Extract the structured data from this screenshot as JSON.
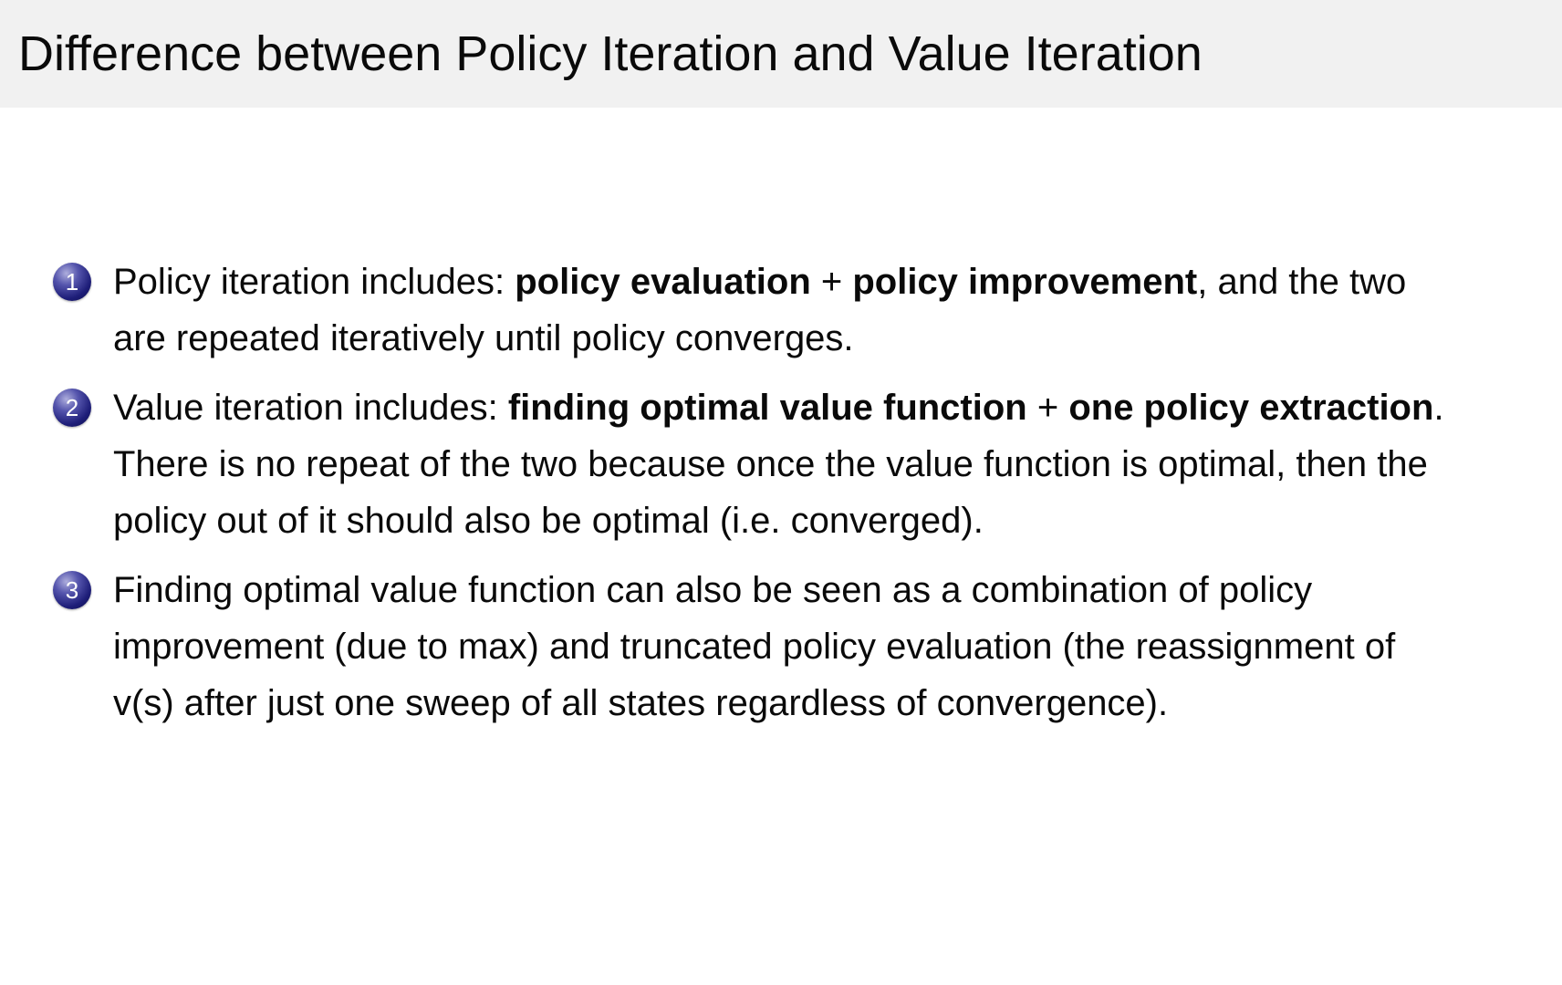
{
  "slide": {
    "title": "Difference between Policy Iteration and Value Iteration",
    "colors": {
      "header_background": "#f1f1f1",
      "body_background": "#ffffff",
      "text": "#0a0a0a",
      "ball_dark": "#1d1d78",
      "ball_highlight": "#aeaedd",
      "ball_number": "#ffffff"
    },
    "items": [
      {
        "number": "1",
        "segments": [
          {
            "text": "Policy iteration includes: ",
            "bold": false
          },
          {
            "text": "policy evaluation",
            "bold": true
          },
          {
            "text": " + ",
            "bold": false
          },
          {
            "text": "policy improvement",
            "bold": true
          },
          {
            "text": ", and the two are repeated iteratively until policy converges.",
            "bold": false
          }
        ]
      },
      {
        "number": "2",
        "segments": [
          {
            "text": "Value iteration includes: ",
            "bold": false
          },
          {
            "text": "finding optimal value function",
            "bold": true
          },
          {
            "text": " + ",
            "bold": false
          },
          {
            "text": "one policy extraction",
            "bold": true
          },
          {
            "text": ". There is no repeat of the two because once the value function is optimal, then the policy out of it should also be optimal (i.e. converged).",
            "bold": false
          }
        ]
      },
      {
        "number": "3",
        "segments": [
          {
            "text": "Finding optimal value function can also be seen as a combination of policy improvement (due to max) and truncated policy evaluation (the reassignment of v(s) after just one sweep of all states regardless of convergence).",
            "bold": false
          }
        ]
      }
    ]
  }
}
